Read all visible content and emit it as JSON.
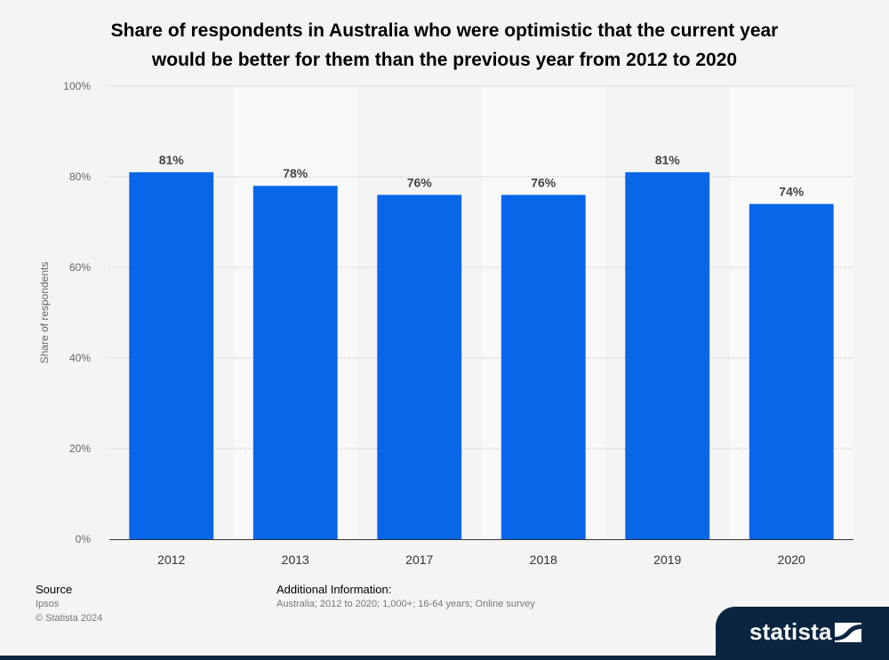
{
  "title_lines": [
    "Share of respondents in Australia who were optimistic that the current year",
    "would be better for them than the previous year from 2012 to 2020"
  ],
  "chart_data": {
    "type": "bar",
    "title": "Share of respondents in Australia who were optimistic that the current year would be better for them than the previous year from 2012 to 2020",
    "categories": [
      "2012",
      "2013",
      "2017",
      "2018",
      "2019",
      "2020"
    ],
    "values": [
      81,
      78,
      76,
      76,
      81,
      74
    ],
    "data_labels": [
      "81%",
      "78%",
      "76%",
      "76%",
      "81%",
      "74%"
    ],
    "xlabel": "",
    "ylabel": "Share of respondents",
    "ylim": [
      0,
      100
    ],
    "yticks": [
      0,
      20,
      40,
      60,
      80,
      100
    ],
    "ytick_labels": [
      "0%",
      "20%",
      "40%",
      "60%",
      "80%",
      "100%"
    ],
    "grid": true,
    "bar_color": "#0866e8"
  },
  "footer": {
    "source_heading": "Source",
    "source": "Ipsos",
    "copyright": "© Statista 2024",
    "info_heading": "Additional Information:",
    "info": "Australia; 2012 to 2020; 1,000+; 16-64 years; Online survey"
  },
  "brand": {
    "name": "statista",
    "icon": "statista-logo-icon"
  }
}
